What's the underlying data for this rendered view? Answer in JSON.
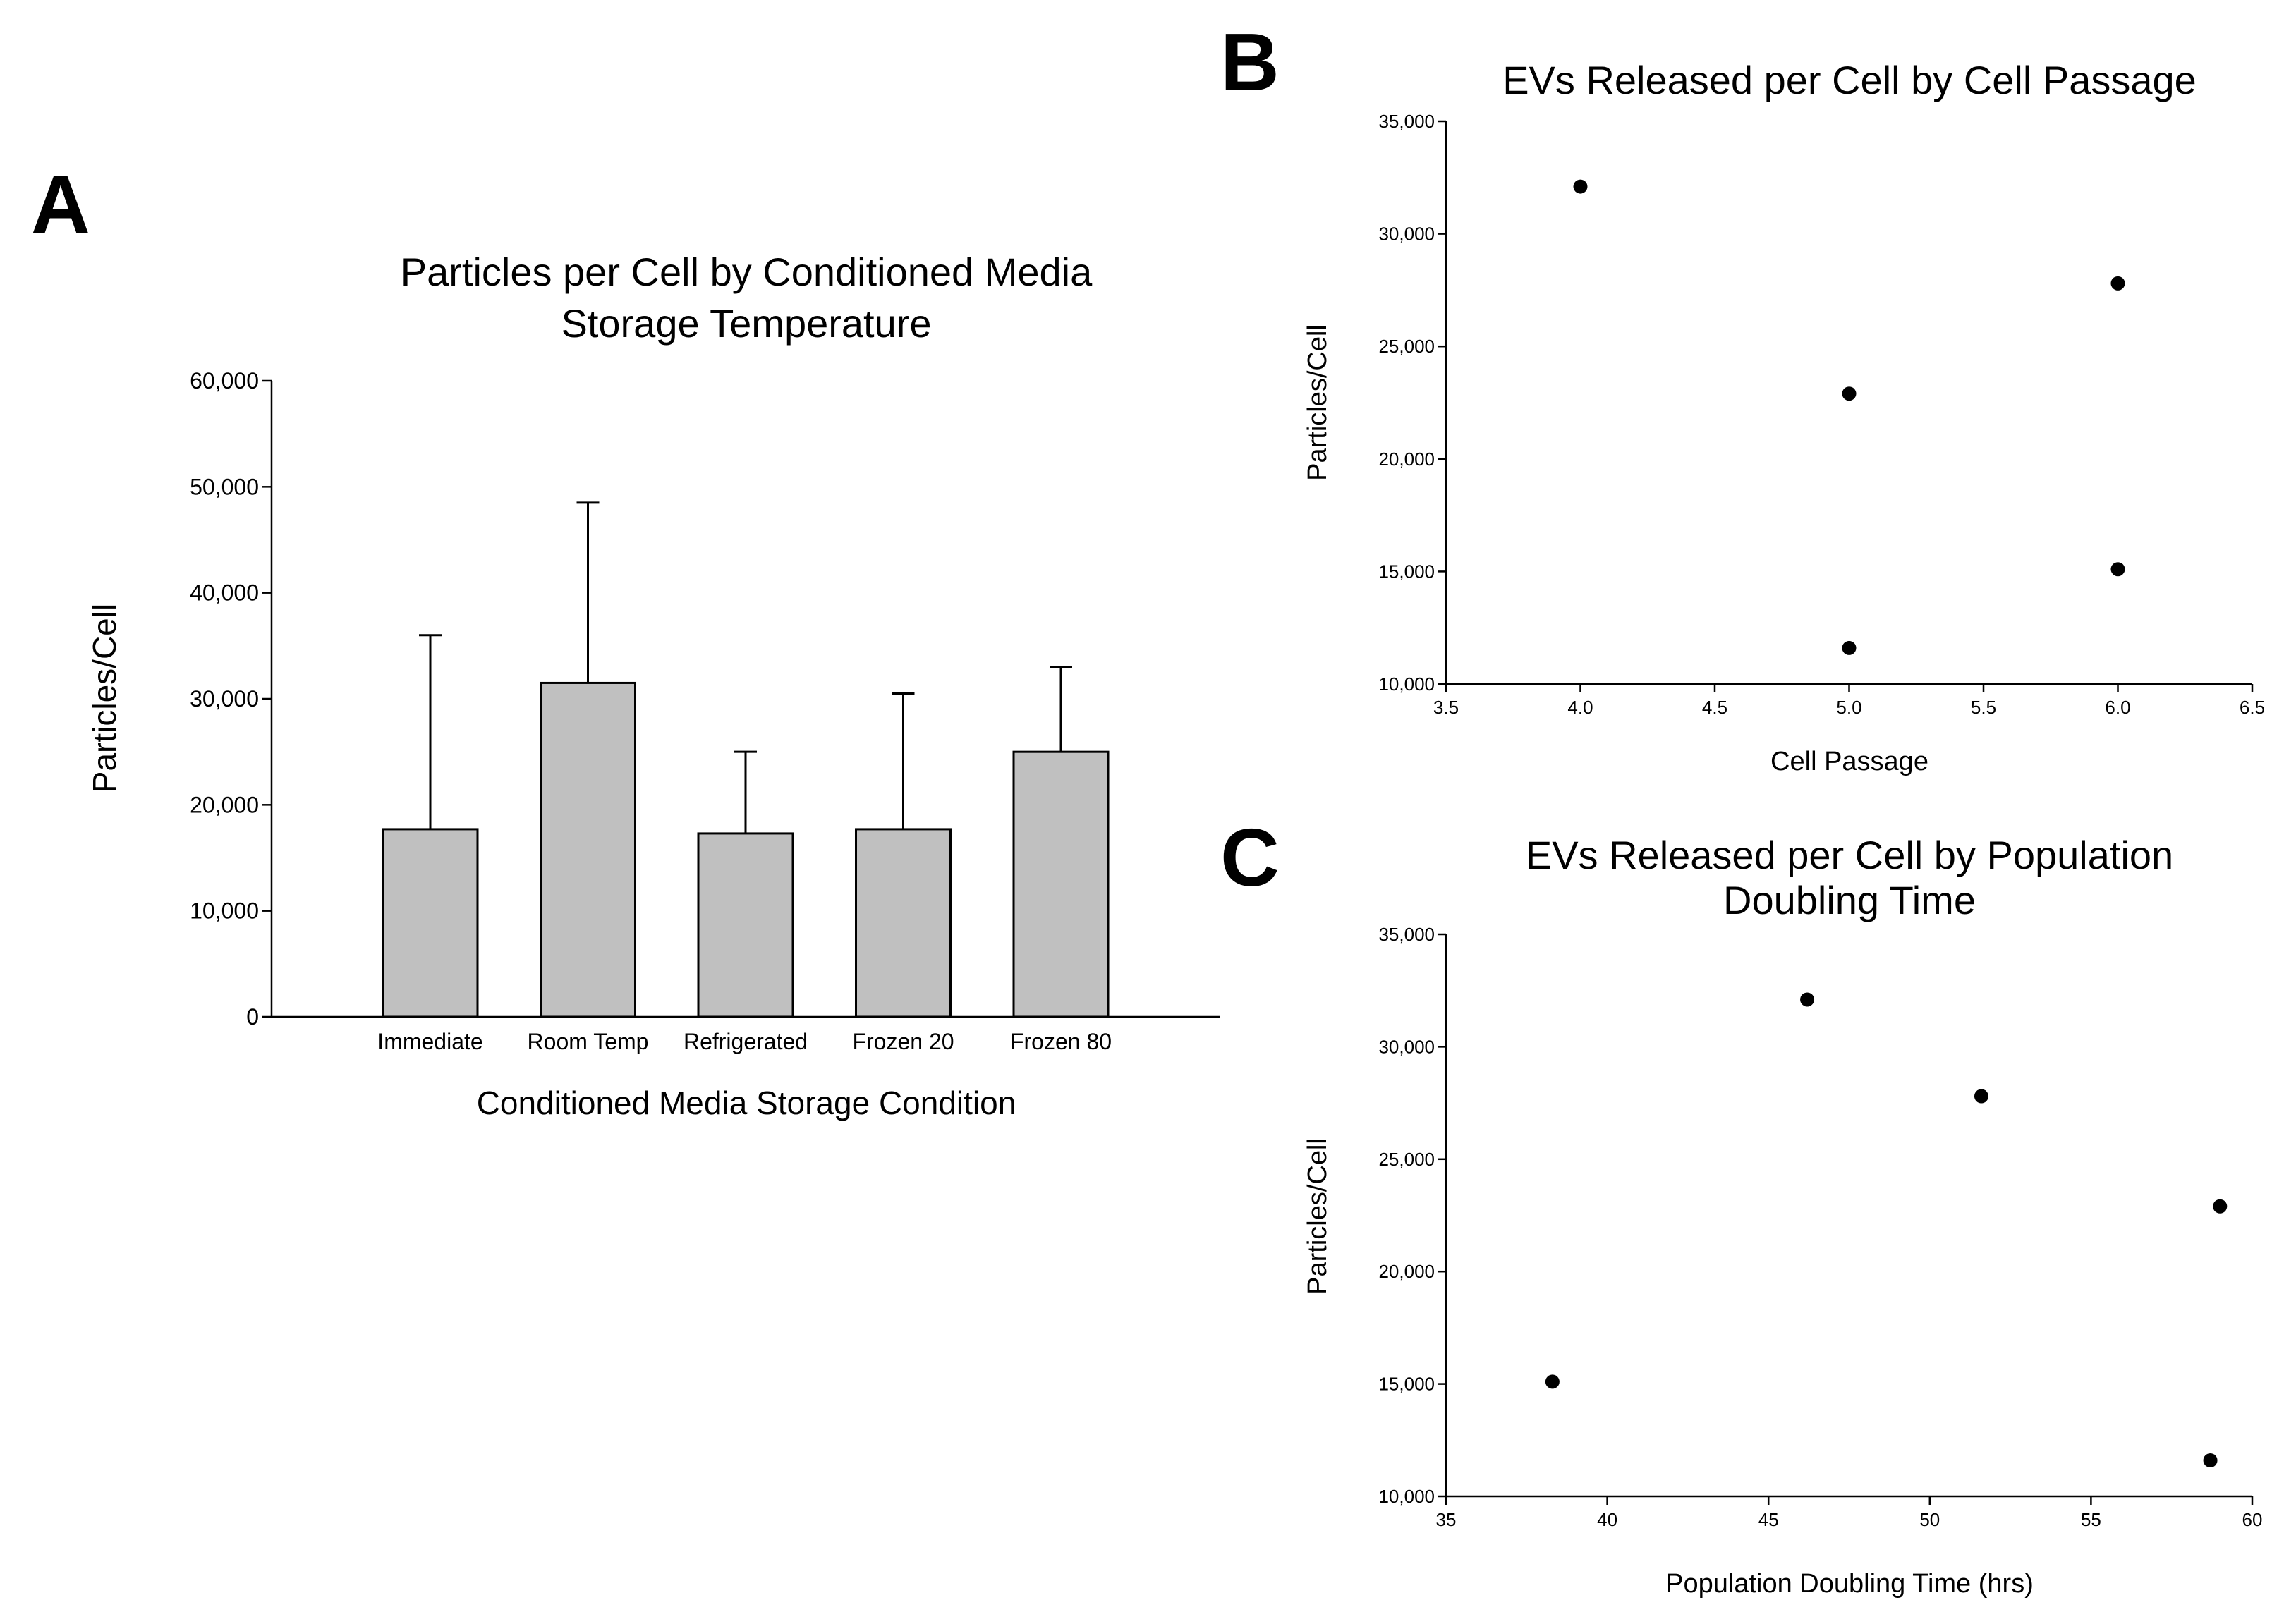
{
  "chart_data": [
    {
      "panel": "A",
      "type": "bar",
      "title": [
        "Particles per Cell by Conditioned Media",
        "Storage Temperature"
      ],
      "xlabel": "Conditioned Media Storage Condition",
      "ylabel": "Particles/Cell",
      "categories": [
        "Immediate",
        "Room Temp",
        "Refrigerated",
        "Frozen 20",
        "Frozen 80"
      ],
      "values": [
        17700,
        31500,
        17300,
        17700,
        25000
      ],
      "error_upper": [
        36000,
        48500,
        25000,
        30500,
        33000
      ],
      "ylim": [
        0,
        60000
      ],
      "yticks": [
        0,
        10000,
        20000,
        30000,
        40000,
        50000,
        60000
      ],
      "ytick_labels": [
        "0",
        "10,000",
        "20,000",
        "30,000",
        "40,000",
        "50,000",
        "60,000"
      ],
      "bar_color": "#c0c0c0",
      "grid": false
    },
    {
      "panel": "B",
      "type": "scatter",
      "title": [
        "EVs Released per Cell by Cell Passage"
      ],
      "xlabel": "Cell Passage",
      "ylabel": "Particles/Cell",
      "x": [
        4.0,
        5.0,
        5.0,
        6.0,
        6.0
      ],
      "y": [
        32100,
        22900,
        11600,
        27800,
        15100
      ],
      "xlim": [
        3.5,
        6.5
      ],
      "ylim": [
        10000,
        35000
      ],
      "xticks": [
        3.5,
        4.0,
        4.5,
        5.0,
        5.5,
        6.0,
        6.5
      ],
      "xtick_labels": [
        "3.5",
        "4.0",
        "4.5",
        "5.0",
        "5.5",
        "6.0",
        "6.5"
      ],
      "yticks": [
        10000,
        15000,
        20000,
        25000,
        30000,
        35000
      ],
      "ytick_labels": [
        "10,000",
        "15,000",
        "20,000",
        "25,000",
        "30,000",
        "35,000"
      ],
      "grid": false
    },
    {
      "panel": "C",
      "type": "scatter",
      "title": [
        "EVs Released per Cell by Population",
        "Doubling Time"
      ],
      "xlabel": "Population Doubling Time (hrs)",
      "ylabel": "Particles/Cell",
      "x": [
        38.3,
        46.2,
        51.6,
        58.7,
        59.0
      ],
      "y": [
        15100,
        32100,
        27800,
        11600,
        22900
      ],
      "xlim": [
        35,
        60
      ],
      "ylim": [
        10000,
        35000
      ],
      "xticks": [
        35,
        40,
        45,
        50,
        55,
        60
      ],
      "xtick_labels": [
        "35",
        "40",
        "45",
        "50",
        "55",
        "60"
      ],
      "yticks": [
        10000,
        15000,
        20000,
        25000,
        30000,
        35000
      ],
      "ytick_labels": [
        "10,000",
        "15,000",
        "20,000",
        "25,000",
        "30,000",
        "35,000"
      ],
      "grid": false
    }
  ]
}
